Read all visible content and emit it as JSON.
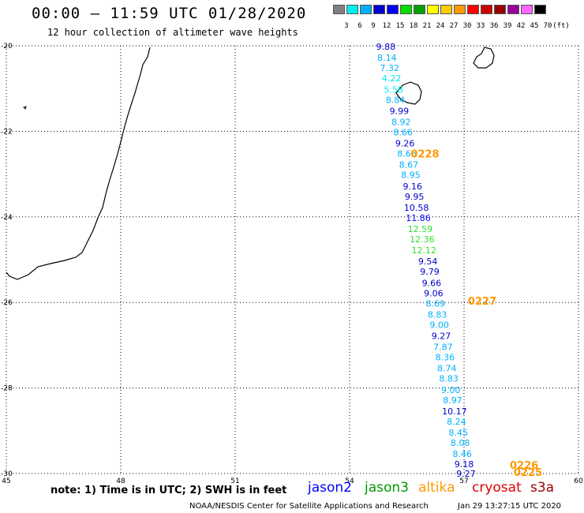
{
  "header": {
    "title": "00:00 – 11:59 UTC 01/28/2020",
    "subtitle": "12 hour collection of altimeter wave heights"
  },
  "colorbar": {
    "colors": [
      "#808080",
      "#00eeee",
      "#00b0ff",
      "#0000cd",
      "#0000ff",
      "#00dd00",
      "#00a000",
      "#ffff00",
      "#ffcc00",
      "#ff9900",
      "#ff0000",
      "#cc0000",
      "#990000",
      "#990099",
      "#ff66ff",
      "#000000"
    ],
    "labels": [
      "3",
      "6",
      "9",
      "12",
      "15",
      "18",
      "21",
      "24",
      "27",
      "30",
      "33",
      "36",
      "39",
      "42",
      "45",
      "70",
      "(ft)"
    ]
  },
  "axes": {
    "x_ticks": [
      "45",
      "48",
      "51",
      "54",
      "57",
      "60"
    ],
    "y_ticks": [
      "-20",
      "-22",
      "-24",
      "-26",
      "-28",
      "-30"
    ]
  },
  "time_labels": [
    {
      "text": "0228",
      "lon": 55.6,
      "lat": -22.52
    },
    {
      "text": "0227",
      "lon": 57.1,
      "lat": -25.96
    },
    {
      "text": "0226",
      "lon": 58.2,
      "lat": -29.8
    },
    {
      "text": "0225",
      "lon": 58.3,
      "lat": -29.96
    }
  ],
  "observations": [
    {
      "v": "9.88",
      "lon": 54.95,
      "lat": -20.02,
      "c": "#0000cd"
    },
    {
      "v": "8.14",
      "lon": 54.98,
      "lat": -20.28,
      "c": "#00b0ff"
    },
    {
      "v": "7.32",
      "lon": 55.05,
      "lat": -20.52,
      "c": "#00b0ff"
    },
    {
      "v": "4.22",
      "lon": 55.1,
      "lat": -20.76,
      "c": "#00eeee"
    },
    {
      "v": "5.58",
      "lon": 55.15,
      "lat": -21.02,
      "c": "#00eeee"
    },
    {
      "v": "8.84",
      "lon": 55.2,
      "lat": -21.26,
      "c": "#00b0ff"
    },
    {
      "v": "9.99",
      "lon": 55.3,
      "lat": -21.52,
      "c": "#0000cd"
    },
    {
      "v": "8.92",
      "lon": 55.35,
      "lat": -21.78,
      "c": "#00b0ff"
    },
    {
      "v": "8.66",
      "lon": 55.4,
      "lat": -22.02,
      "c": "#00b0ff"
    },
    {
      "v": "9.26",
      "lon": 55.45,
      "lat": -22.28,
      "c": "#0000cd"
    },
    {
      "v": "8.66",
      "lon": 55.5,
      "lat": -22.52,
      "c": "#00b0ff"
    },
    {
      "v": "8.67",
      "lon": 55.55,
      "lat": -22.78,
      "c": "#00b0ff"
    },
    {
      "v": "8.95",
      "lon": 55.6,
      "lat": -23.02,
      "c": "#00b0ff"
    },
    {
      "v": "9.16",
      "lon": 55.65,
      "lat": -23.28,
      "c": "#0000cd"
    },
    {
      "v": "9.95",
      "lon": 55.7,
      "lat": -23.52,
      "c": "#0000cd"
    },
    {
      "v": "10.58",
      "lon": 55.75,
      "lat": -23.78,
      "c": "#0000cd"
    },
    {
      "v": "11.86",
      "lon": 55.8,
      "lat": -24.02,
      "c": "#0000ff"
    },
    {
      "v": "12.59",
      "lon": 55.85,
      "lat": -24.28,
      "c": "#33dd33"
    },
    {
      "v": "12.36",
      "lon": 55.9,
      "lat": -24.52,
      "c": "#33dd33"
    },
    {
      "v": "12.12",
      "lon": 55.95,
      "lat": -24.78,
      "c": "#33dd33"
    },
    {
      "v": "9.54",
      "lon": 56.05,
      "lat": -25.04,
      "c": "#0000cd"
    },
    {
      "v": "9.79",
      "lon": 56.1,
      "lat": -25.28,
      "c": "#0000cd"
    },
    {
      "v": "9.66",
      "lon": 56.15,
      "lat": -25.54,
      "c": "#0000cd"
    },
    {
      "v": "9.06",
      "lon": 56.2,
      "lat": -25.78,
      "c": "#0000cd"
    },
    {
      "v": "8.69",
      "lon": 56.25,
      "lat": -26.02,
      "c": "#00b0ff"
    },
    {
      "v": "8.83",
      "lon": 56.3,
      "lat": -26.28,
      "c": "#00b0ff"
    },
    {
      "v": "9.00",
      "lon": 56.35,
      "lat": -26.52,
      "c": "#00b0ff"
    },
    {
      "v": "9.27",
      "lon": 56.4,
      "lat": -26.78,
      "c": "#0000cd"
    },
    {
      "v": "7.87",
      "lon": 56.45,
      "lat": -27.04,
      "c": "#00b0ff"
    },
    {
      "v": "8.36",
      "lon": 56.5,
      "lat": -27.28,
      "c": "#00b0ff"
    },
    {
      "v": "8.74",
      "lon": 56.55,
      "lat": -27.54,
      "c": "#00b0ff"
    },
    {
      "v": "8.83",
      "lon": 56.6,
      "lat": -27.78,
      "c": "#00b0ff"
    },
    {
      "v": "9.00",
      "lon": 56.65,
      "lat": -28.04,
      "c": "#00b0ff"
    },
    {
      "v": "8.97",
      "lon": 56.7,
      "lat": -28.28,
      "c": "#00b0ff"
    },
    {
      "v": "10.17",
      "lon": 56.75,
      "lat": -28.54,
      "c": "#0000cd"
    },
    {
      "v": "8.24",
      "lon": 56.8,
      "lat": -28.78,
      "c": "#00b0ff"
    },
    {
      "v": "8.45",
      "lon": 56.85,
      "lat": -29.04,
      "c": "#00b0ff"
    },
    {
      "v": "8.08",
      "lon": 56.9,
      "lat": -29.28,
      "c": "#00b0ff"
    },
    {
      "v": "8.46",
      "lon": 56.95,
      "lat": -29.54,
      "c": "#00b0ff"
    },
    {
      "v": "9.18",
      "lon": 57.0,
      "lat": -29.78,
      "c": "#0000cd"
    },
    {
      "v": "9.27",
      "lon": 57.05,
      "lat": -30.0,
      "c": "#0000cd"
    }
  ],
  "footer": {
    "note": "note: 1) Time is in UTC; 2) SWH is in feet",
    "credit": "NOAA/NESDIS Center for Satellite Applications and Research",
    "timestamp": "Jan 29 13:27:15 UTC 2020"
  },
  "legend": [
    {
      "name": "jason2",
      "color": "#0000ff"
    },
    {
      "name": "jason3",
      "color": "#009900"
    },
    {
      "name": "altika",
      "color": "#ff9900"
    },
    {
      "name": "cryosat",
      "color": "#dd0000"
    },
    {
      "name": "s3a",
      "color": "#990000"
    }
  ]
}
